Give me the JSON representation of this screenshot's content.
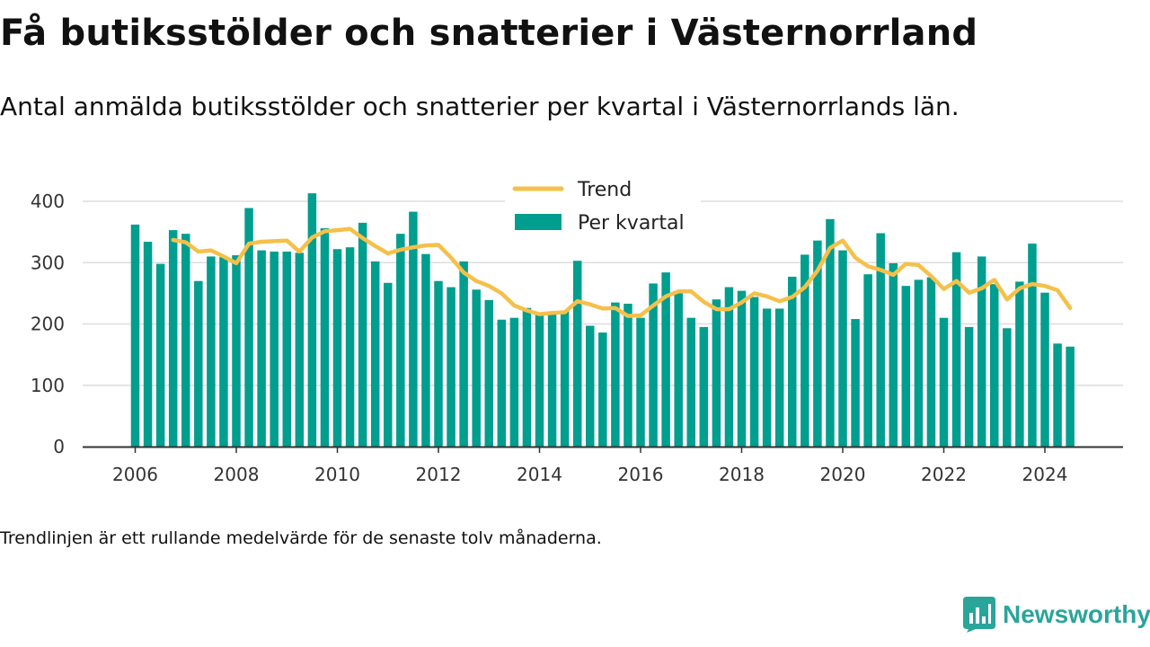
{
  "title": "Få butiksstölder och snatterier i Västernorrland",
  "subtitle": "Antal anmälda butiksstölder och snatterier per kvartal i Västernorrlands län.",
  "note": "Trendlinjen är ett rullande medelvärde för de senaste tolv månaderna.",
  "brand": {
    "name": "Newsworthy",
    "icon": "newsworthy-logo-icon"
  },
  "colors": {
    "bars": "#009e8e",
    "trend": "#f5c04a",
    "grid": "#dddddd",
    "axis": "#333333",
    "brand": "#2aa59a"
  },
  "chart_data": {
    "type": "bar",
    "title": "",
    "xlabel": "",
    "ylabel": "",
    "ylim": [
      0,
      400
    ],
    "yticks": [
      0,
      100,
      200,
      300,
      400
    ],
    "xlim": [
      2005.75,
      2024.75
    ],
    "xticks": [
      "2006",
      "2008",
      "2010",
      "2012",
      "2014",
      "2016",
      "2018",
      "2020",
      "2022",
      "2024"
    ],
    "grid": true,
    "legend_position": "top-center",
    "categories": [
      "2006 Q1",
      "2006 Q2",
      "2006 Q3",
      "2006 Q4",
      "2007 Q1",
      "2007 Q2",
      "2007 Q3",
      "2007 Q4",
      "2008 Q1",
      "2008 Q2",
      "2008 Q3",
      "2008 Q4",
      "2009 Q1",
      "2009 Q2",
      "2009 Q3",
      "2009 Q4",
      "2010 Q1",
      "2010 Q2",
      "2010 Q3",
      "2010 Q4",
      "2011 Q1",
      "2011 Q2",
      "2011 Q3",
      "2011 Q4",
      "2012 Q1",
      "2012 Q2",
      "2012 Q3",
      "2012 Q4",
      "2013 Q1",
      "2013 Q2",
      "2013 Q3",
      "2013 Q4",
      "2014 Q1",
      "2014 Q2",
      "2014 Q3",
      "2014 Q4",
      "2015 Q1",
      "2015 Q2",
      "2015 Q3",
      "2015 Q4",
      "2016 Q1",
      "2016 Q2",
      "2016 Q3",
      "2016 Q4",
      "2017 Q1",
      "2017 Q2",
      "2017 Q3",
      "2017 Q4",
      "2018 Q1",
      "2018 Q2",
      "2018 Q3",
      "2018 Q4",
      "2019 Q1",
      "2019 Q2",
      "2019 Q3",
      "2019 Q4",
      "2020 Q1",
      "2020 Q2",
      "2020 Q3",
      "2020 Q4",
      "2021 Q1",
      "2021 Q2",
      "2021 Q3",
      "2021 Q4",
      "2022 Q1",
      "2022 Q2",
      "2022 Q3",
      "2022 Q4",
      "2023 Q1",
      "2023 Q2",
      "2023 Q3",
      "2023 Q4",
      "2024 Q1",
      "2024 Q2",
      "2024 Q3"
    ],
    "series": [
      {
        "name": "Per kvartal",
        "type": "bar",
        "color": "#009e8e",
        "values": [
          362,
          334,
          298,
          353,
          347,
          270,
          310,
          309,
          312,
          389,
          320,
          318,
          318,
          316,
          413,
          356,
          322,
          325,
          365,
          302,
          267,
          347,
          383,
          314,
          270,
          260,
          302,
          256,
          239,
          207,
          210,
          226,
          215,
          217,
          222,
          303,
          197,
          186,
          235,
          233,
          210,
          266,
          284,
          253,
          210,
          195,
          240,
          260,
          254,
          244,
          225,
          225,
          277,
          313,
          336,
          371,
          320,
          208,
          281,
          348,
          299,
          262,
          272,
          276,
          210,
          317,
          195,
          310,
          265,
          193,
          269,
          331,
          251,
          168,
          163
        ]
      },
      {
        "name": "Trend",
        "type": "line",
        "color": "#f5c04a",
        "values": [
          null,
          null,
          null,
          337,
          333,
          318,
          320,
          310,
          299,
          331,
          334,
          335,
          336,
          318,
          341,
          351,
          353,
          355,
          340,
          327,
          315,
          321,
          325,
          328,
          329,
          308,
          284,
          270,
          262,
          250,
          230,
          222,
          216,
          218,
          219,
          237,
          232,
          225,
          226,
          213,
          214,
          230,
          245,
          253,
          253,
          236,
          224,
          224,
          235,
          250,
          245,
          237,
          244,
          260,
          287,
          324,
          336,
          308,
          294,
          288,
          280,
          298,
          296,
          278,
          257,
          270,
          251,
          258,
          272,
          240,
          258,
          265,
          262,
          255,
          226
        ]
      }
    ]
  }
}
